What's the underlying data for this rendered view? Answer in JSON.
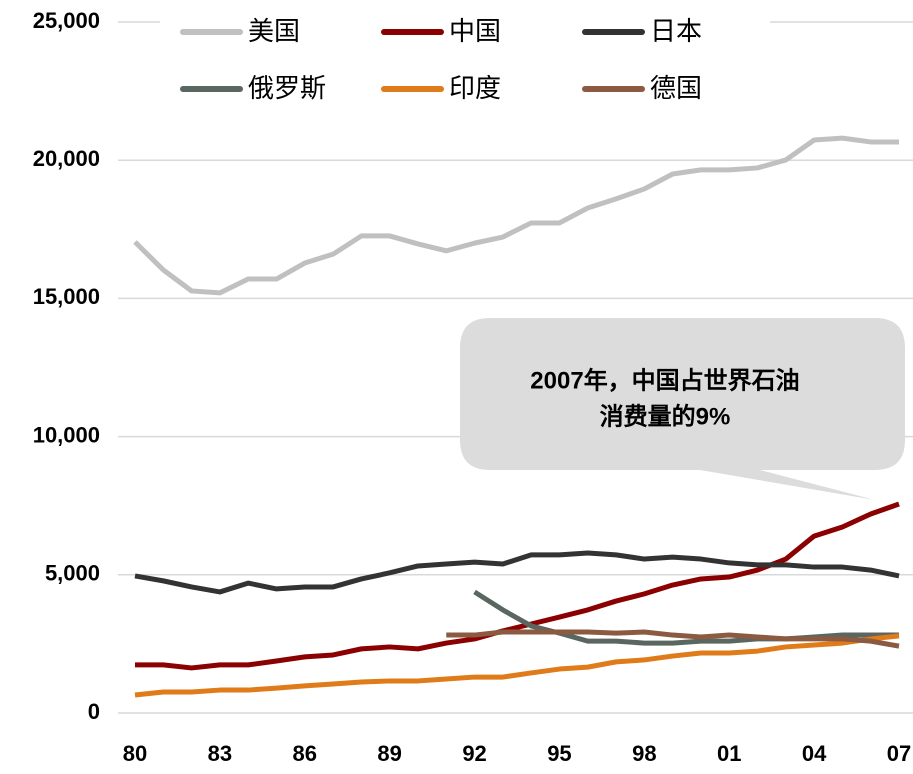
{
  "chart_data": {
    "type": "line",
    "categories": [
      "80",
      null,
      null,
      "83",
      null,
      null,
      "86",
      null,
      null,
      "89",
      null,
      null,
      "92",
      null,
      null,
      "95",
      null,
      null,
      "98",
      null,
      null,
      "01",
      null,
      null,
      "04",
      null,
      null,
      "07"
    ],
    "series": [
      {
        "name": "美国",
        "color": "#c0c0c0",
        "values": [
          17040,
          16030,
          15270,
          15200,
          15700,
          15700,
          16280,
          16600,
          17260,
          17260,
          16970,
          16720,
          17000,
          17220,
          17730,
          17730,
          18270,
          18600,
          18960,
          19500,
          19650,
          19650,
          19720,
          20010,
          20730,
          20800,
          20660,
          20660
        ]
      },
      {
        "name": "中国",
        "color": "#8b0000",
        "values": [
          1740,
          1740,
          1630,
          1740,
          1740,
          1880,
          2030,
          2100,
          2320,
          2390,
          2320,
          2530,
          2680,
          2970,
          3220,
          3470,
          3730,
          4050,
          4310,
          4630,
          4850,
          4920,
          5170,
          5570,
          6400,
          6730,
          7200,
          7560
        ]
      },
      {
        "name": "日本",
        "color": "#333333",
        "values": [
          4960,
          4780,
          4560,
          4380,
          4700,
          4490,
          4560,
          4560,
          4850,
          5070,
          5320,
          5390,
          5460,
          5390,
          5720,
          5720,
          5790,
          5720,
          5570,
          5640,
          5570,
          5430,
          5360,
          5360,
          5280,
          5280,
          5170,
          4960
        ]
      },
      {
        "name": "俄罗斯",
        "color": "#5a6660",
        "values": [
          null,
          null,
          null,
          null,
          null,
          null,
          null,
          null,
          null,
          null,
          null,
          null,
          4380,
          3730,
          3150,
          2890,
          2600,
          2600,
          2530,
          2530,
          2600,
          2600,
          2680,
          2680,
          2750,
          2820,
          2820,
          2820
        ]
      },
      {
        "name": "印度",
        "color": "#e07b1a",
        "values": [
          650,
          760,
          760,
          830,
          830,
          900,
          980,
          1050,
          1120,
          1160,
          1160,
          1230,
          1300,
          1300,
          1450,
          1590,
          1660,
          1850,
          1920,
          2060,
          2170,
          2170,
          2240,
          2390,
          2460,
          2530,
          2680,
          2790
        ]
      },
      {
        "name": "德国",
        "color": "#8b5a40",
        "values": [
          null,
          null,
          null,
          null,
          null,
          null,
          null,
          null,
          null,
          null,
          null,
          2820,
          2820,
          2930,
          2930,
          2930,
          2930,
          2890,
          2930,
          2820,
          2750,
          2820,
          2750,
          2680,
          2680,
          2680,
          2600,
          2420
        ]
      }
    ],
    "ylim": [
      0,
      25000
    ],
    "yticks": [
      0,
      {
        "value": 5000,
        "label": "5,000"
      },
      {
        "value": 10000,
        "label": "10,000"
      },
      {
        "value": 15000,
        "label": "15,000"
      },
      {
        "value": 20000,
        "label": "20,000"
      },
      {
        "value": 25000,
        "label": "25,000"
      }
    ],
    "grid": true,
    "annotation": [
      "2007年，中国占世界石油",
      "消费量的9%"
    ]
  }
}
